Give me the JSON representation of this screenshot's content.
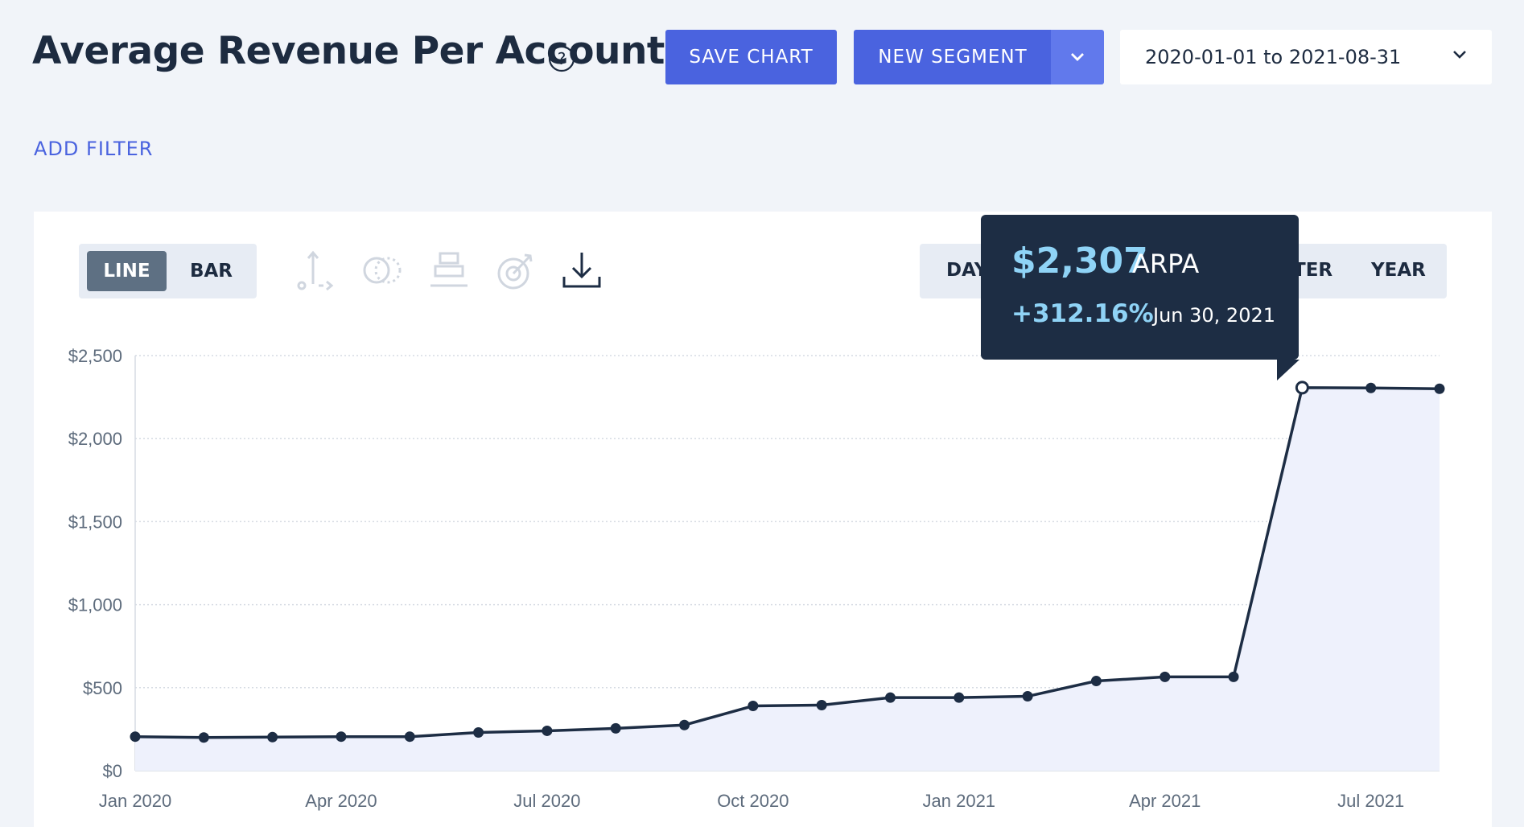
{
  "header": {
    "title": "Average Revenue Per Account",
    "help_icon": "question-circle-icon",
    "save_label": "SAVE CHART",
    "segment_label": "NEW SEGMENT",
    "date_range": "2020-01-01 to 2021-08-31",
    "accent_color": "#4a63df"
  },
  "filters": {
    "add_label": "ADD FILTER"
  },
  "toolbar": {
    "chart_types": [
      "LINE",
      "BAR"
    ],
    "selected_chart_type": "LINE",
    "icons": [
      "axis-icon",
      "compare-icon",
      "stack-icon",
      "goal-target-icon",
      "download-icon"
    ],
    "periods": [
      "DAY",
      "TER",
      "YEAR"
    ]
  },
  "tooltip": {
    "value": "$2,307",
    "label": "ARPA",
    "change": "+312.16%",
    "date": "Jun 30, 2021"
  },
  "chart_data": {
    "type": "area",
    "title": "",
    "xlabel": "",
    "ylabel": "",
    "ylim": [
      0,
      2500
    ],
    "y_ticks": [
      "$0",
      "$500",
      "$1,000",
      "$1,500",
      "$2,000",
      "$2,500"
    ],
    "x_tick_labels": [
      "Jan 2020",
      "Apr 2020",
      "Jul 2020",
      "Oct 2020",
      "Jan 2021",
      "Apr 2021",
      "Jul 2021"
    ],
    "x": [
      "2020-01-31",
      "2020-02-29",
      "2020-03-31",
      "2020-04-30",
      "2020-05-31",
      "2020-06-30",
      "2020-07-31",
      "2020-08-31",
      "2020-09-30",
      "2020-10-31",
      "2020-11-30",
      "2020-12-31",
      "2021-01-31",
      "2021-02-28",
      "2021-03-31",
      "2021-04-30",
      "2021-05-31",
      "2021-06-30",
      "2021-07-31",
      "2021-08-31"
    ],
    "series": [
      {
        "values": [
          205,
          200,
          202,
          205,
          205,
          230,
          240,
          255,
          275,
          390,
          395,
          440,
          440,
          448,
          540,
          565,
          565,
          2307,
          2305,
          2300
        ]
      }
    ],
    "highlight_index": 17,
    "grid": true,
    "line_color": "#1d2d44",
    "fill_color": "#eef1fc"
  }
}
